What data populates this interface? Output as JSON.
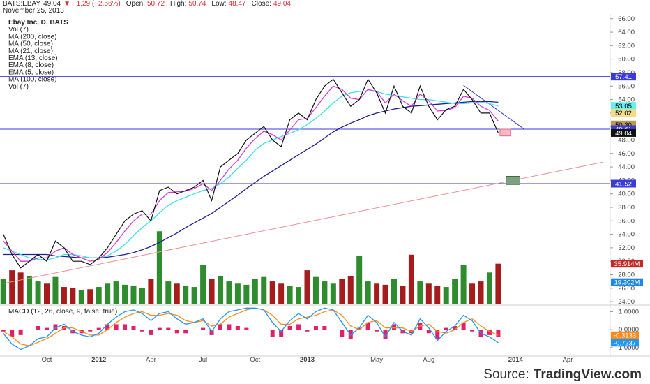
{
  "chart_data": {
    "type": "line",
    "header": {
      "symbol": "BATS:EBAY",
      "last": "49.04",
      "change": "▼ −1.29 (−2.56%)",
      "fields": [
        {
          "label": "Open:",
          "value": "50.72"
        },
        {
          "label": "High:",
          "value": "50.74"
        },
        {
          "label": "Low:",
          "value": "48.47"
        },
        {
          "label": "Close:",
          "value": "49.04"
        }
      ],
      "date": "November 25, 2013"
    },
    "legend": [
      "Ebay Inc, D, BATS",
      "Vol (7)",
      "MA (200, close)",
      "MA (50, close)",
      "MA (21, close)",
      "EMA (13, close)",
      "EMA (8, close)",
      "EMA (5, close)",
      "MA (100, close)",
      "Vol (7)"
    ],
    "categories": [
      null,
      null,
      null,
      null,
      null,
      "Oct",
      null,
      null,
      null,
      null,
      null,
      "2012",
      null,
      null,
      null,
      null,
      null,
      "Apr",
      null,
      null,
      null,
      null,
      null,
      "Jul",
      null,
      null,
      null,
      null,
      null,
      "Oct",
      null,
      null,
      null,
      null,
      null,
      "2013",
      null,
      null,
      null,
      null,
      null,
      null,
      null,
      "May",
      null,
      null,
      null,
      null,
      null,
      "Aug",
      null,
      null,
      null,
      null,
      null,
      null,
      null,
      null,
      null,
      "2014",
      null,
      null,
      null,
      null,
      null,
      "Apr",
      null,
      null,
      null,
      null
    ],
    "ylim": [
      23.7,
      66.7
    ],
    "yticks": [
      {
        "value": 24,
        "label": "24.00"
      },
      {
        "value": 26,
        "label": "26.00"
      },
      {
        "value": 28,
        "label": "28.00"
      },
      {
        "value": 30,
        "label": "30.00"
      },
      {
        "value": 32,
        "label": "32.00"
      },
      {
        "value": 34,
        "label": "34.00"
      },
      {
        "value": 36,
        "label": "36.00"
      },
      {
        "value": 38,
        "label": "38.00"
      },
      {
        "value": 40,
        "label": "40.00"
      },
      {
        "value": 42,
        "label": "42.00"
      },
      {
        "value": 44,
        "label": "44.00"
      },
      {
        "value": 46,
        "label": "46.00"
      },
      {
        "value": 48,
        "label": "48.00"
      },
      {
        "value": 50,
        "label": "50.00"
      },
      {
        "value": 52,
        "label": "52.00"
      },
      {
        "value": 54,
        "label": "54.00"
      },
      {
        "value": 56,
        "label": "56.00"
      },
      {
        "value": 58,
        "label": "58.00"
      },
      {
        "value": 60,
        "label": "60.00"
      },
      {
        "value": 62,
        "label": "62.00"
      },
      {
        "value": 64,
        "label": "64.00"
      },
      {
        "value": 66,
        "label": "66.00"
      }
    ],
    "price": {
      "color": "#111111",
      "values": [
        34,
        31,
        29,
        30,
        31,
        30,
        33,
        32,
        30,
        30,
        29.5,
        30.5,
        32,
        34,
        36,
        37,
        37.5,
        36,
        40.5,
        41,
        40,
        40.5,
        41,
        42,
        39,
        44,
        45,
        46,
        48,
        49,
        50,
        48,
        47,
        51,
        52,
        51,
        54,
        56,
        57,
        55,
        53,
        54,
        57,
        55,
        52,
        56,
        53,
        52,
        56,
        53,
        51,
        52.5,
        53,
        55.5,
        54,
        52,
        52,
        49.04,
        null,
        null,
        null,
        null,
        null,
        null,
        null,
        null,
        null,
        null,
        null,
        null
      ]
    },
    "averages": [
      {
        "color": "#1f1f8f",
        "values": [
          31,
          31,
          31,
          31,
          31,
          31,
          30.8,
          30.7,
          30.6,
          30.5,
          30.5,
          30.5,
          30.6,
          30.8,
          31,
          31.3,
          31.7,
          32.2,
          32.8,
          33.5,
          34.2,
          35,
          35.7,
          36.4,
          37.1,
          38,
          38.9,
          39.8,
          40.8,
          41.7,
          42.6,
          43.4,
          44.2,
          45,
          45.8,
          46.6,
          47.4,
          48.3,
          49.2,
          49.9,
          50.5,
          51,
          51.6,
          52,
          52.3,
          52.6,
          52.8,
          53,
          53.1,
          53.2,
          53.3,
          53.4,
          53.5,
          53.6,
          53.7,
          53.7,
          53.7,
          53.6,
          null,
          null,
          null,
          null,
          null,
          null,
          null,
          null,
          null,
          null,
          null,
          null
        ]
      },
      {
        "color": "#3ee0ee",
        "values": [
          32,
          31.5,
          31,
          30.5,
          30.3,
          30.2,
          30.5,
          31,
          31,
          30.8,
          30.5,
          30.5,
          30.8,
          31.5,
          32.5,
          33.8,
          35,
          36,
          37.2,
          38.3,
          39,
          39.5,
          40,
          40.5,
          40.8,
          41.5,
          42.5,
          43.8,
          45,
          46.5,
          47.5,
          48,
          48.5,
          49,
          49.5,
          50.3,
          51.2,
          52.3,
          53.5,
          54.5,
          55,
          55.2,
          55.3,
          55.2,
          54.8,
          54.6,
          54.4,
          54.2,
          54,
          54,
          53.8,
          53.6,
          53.4,
          53.4,
          53.5,
          53.6,
          53.4,
          53.05,
          null,
          null,
          null,
          null,
          null,
          null,
          null,
          null,
          null,
          null,
          null,
          null
        ]
      },
      {
        "color": "#d63ad6",
        "values": [
          33,
          31.5,
          30,
          30,
          30.5,
          30.5,
          31.5,
          32,
          31,
          30.5,
          30,
          30.3,
          31.3,
          32.8,
          34.5,
          36,
          37,
          37,
          39,
          40.2,
          40.3,
          40.4,
          40.8,
          41.5,
          40.5,
          42,
          43.7,
          45,
          46.8,
          48.2,
          49.3,
          48.8,
          48,
          49.5,
          51,
          51.2,
          52.8,
          54.5,
          56,
          55.5,
          54.2,
          54,
          55.5,
          55.2,
          53.5,
          54.8,
          53.8,
          53,
          54.8,
          53.8,
          52.3,
          52.4,
          52.8,
          54.5,
          54.2,
          53,
          52.4,
          50.8,
          null,
          null,
          null,
          null,
          null,
          null,
          null,
          null,
          null,
          null,
          null,
          null
        ]
      }
    ],
    "volume": {
      "ylim": [
        0,
        260
      ],
      "up_color": "#2e8b2e",
      "down_color": "#a51c1c",
      "values": [
        22,
        30,
        28,
        25,
        20,
        18,
        24,
        15,
        14,
        12,
        13,
        15,
        18,
        20,
        17,
        16,
        14,
        22,
        65,
        20,
        18,
        16,
        15,
        35,
        22,
        25,
        20,
        18,
        17,
        22,
        24,
        20,
        18,
        16,
        15,
        30,
        24,
        20,
        18,
        22,
        25,
        43,
        20,
        18,
        17,
        22,
        16,
        44,
        20,
        18,
        16,
        15,
        22,
        35,
        18,
        20,
        28,
        35.914,
        null,
        null,
        null,
        null,
        null,
        null,
        null,
        null,
        null,
        null,
        null,
        null
      ],
      "markers": [
        {
          "value": 35.914,
          "label": "35.914M",
          "color": "#c62828"
        },
        {
          "value": 19.302,
          "label": "19.302M",
          "color": "#1e88e5"
        }
      ]
    },
    "markers": [
      {
        "value": 57.41,
        "color": "#3b3bd6",
        "text_color": "#ffffff",
        "line": true
      },
      {
        "value": 53.05,
        "color": "#66f0f0",
        "text_color": "#000000",
        "line": false
      },
      {
        "value": 52.02,
        "color": "#f2dc8a",
        "text_color": "#000000",
        "line": false
      },
      {
        "value": 50.3,
        "label": "50.30",
        "color": "#b89a55",
        "text_color": "#000000",
        "line": false
      },
      {
        "value": 49.61,
        "color": "#3b3bd6",
        "text_color": "#ffffff",
        "line": true
      },
      {
        "value": 49.04,
        "color": "#111111",
        "text_color": "#ffffff",
        "line": false
      },
      {
        "value": 41.52,
        "color": "#3b3bd6",
        "text_color": "#ffffff",
        "line": true
      }
    ],
    "trendlines": [
      {
        "x": [
          0,
          69
        ],
        "y": [
          26.7,
          44.7
        ],
        "color": "#e89090"
      },
      {
        "x": [
          53,
          60
        ],
        "y": [
          56.1,
          49.6
        ],
        "color": "#3b3bd6"
      }
    ],
    "boxes": [
      {
        "x": [
          57.2,
          58.4
        ],
        "y": [
          49.6,
          48.6
        ],
        "fill": "#f7b8c4",
        "stroke": "#e07090"
      },
      {
        "x": [
          57.9,
          59.5
        ],
        "y": [
          42.6,
          41.4
        ],
        "fill": "#7fa07f",
        "stroke": "#2e5e2e"
      }
    ],
    "macd": {
      "title": "MACD (12, 26, close, 9, false, true)",
      "ylim": [
        -1.47,
        1.25
      ],
      "yticks": [
        {
          "value": 1,
          "label": "1.0000"
        },
        {
          "value": 0,
          "label": "0.0000"
        },
        {
          "value": -1,
          "label": "-1.0000"
        }
      ],
      "macd": {
        "color": "#2196f3",
        "values": [
          -0.2,
          -0.8,
          -1.1,
          -0.9,
          -0.5,
          -0.4,
          0.1,
          0.3,
          -0.1,
          -0.3,
          -0.4,
          -0.2,
          0.3,
          0.7,
          1.0,
          1.1,
          0.9,
          0.5,
          0.9,
          1.0,
          0.6,
          0.3,
          0.4,
          0.6,
          -0.1,
          0.6,
          1.0,
          1.1,
          1.2,
          1.2,
          1.1,
          0.4,
          -0.1,
          0.5,
          0.9,
          0.6,
          1.0,
          1.2,
          1.1,
          0.4,
          -0.3,
          0.1,
          0.8,
          0.4,
          -0.4,
          0.4,
          -0.1,
          -0.3,
          0.6,
          0.1,
          -0.6,
          -0.1,
          0.2,
          0.8,
          0.5,
          -0.2,
          -0.4,
          -0.7237,
          null,
          null,
          null,
          null,
          null,
          null,
          null,
          null,
          null,
          null,
          null,
          null
        ]
      },
      "signal": {
        "color": "#ff8c1a",
        "values": [
          -0.1,
          -0.4,
          -0.8,
          -0.9,
          -0.7,
          -0.5,
          -0.2,
          0.1,
          0.1,
          -0.1,
          -0.3,
          -0.3,
          0,
          0.4,
          0.7,
          0.9,
          1.0,
          0.8,
          0.8,
          0.9,
          0.8,
          0.5,
          0.4,
          0.5,
          0.2,
          0.3,
          0.7,
          0.9,
          1.1,
          1.2,
          1.1,
          0.8,
          0.3,
          0.3,
          0.6,
          0.7,
          0.8,
          1.0,
          1.1,
          0.8,
          0.2,
          0,
          0.4,
          0.5,
          0.1,
          0.1,
          0.1,
          -0.1,
          0.2,
          0.3,
          -0.1,
          -0.2,
          0,
          0.4,
          0.6,
          0.2,
          -0.1,
          -0.3133,
          null,
          null,
          null,
          null,
          null,
          null,
          null,
          null,
          null,
          null,
          null,
          null
        ]
      },
      "histogram": {
        "color": "#e0206a",
        "values": [
          -0.1,
          -0.4,
          -0.3,
          0,
          0.2,
          0.1,
          0.3,
          0.2,
          -0.2,
          -0.2,
          -0.1,
          0.1,
          0.3,
          0.3,
          0.3,
          0.2,
          -0.1,
          -0.3,
          0.1,
          0.1,
          -0.2,
          -0.2,
          0,
          0.1,
          -0.3,
          0.3,
          0.3,
          0.2,
          0.1,
          0,
          0,
          -0.4,
          -0.4,
          0.2,
          0.3,
          -0.1,
          0.2,
          0.2,
          0,
          -0.4,
          -0.5,
          0.1,
          0.4,
          -0.1,
          -0.5,
          0.3,
          -0.2,
          -0.2,
          0.4,
          -0.2,
          -0.5,
          0.1,
          0.2,
          0.4,
          -0.1,
          -0.4,
          -0.3,
          -0.4104,
          null,
          null,
          null,
          null,
          null,
          null,
          null,
          null,
          null,
          null,
          null,
          null
        ]
      },
      "markers": [
        {
          "value": -0.3133,
          "color": "#ff8c1a"
        },
        {
          "value": -0.7237,
          "color": "#2196f3"
        }
      ]
    },
    "source": {
      "prefix": "Source:",
      "site": "TradingView.com"
    }
  }
}
